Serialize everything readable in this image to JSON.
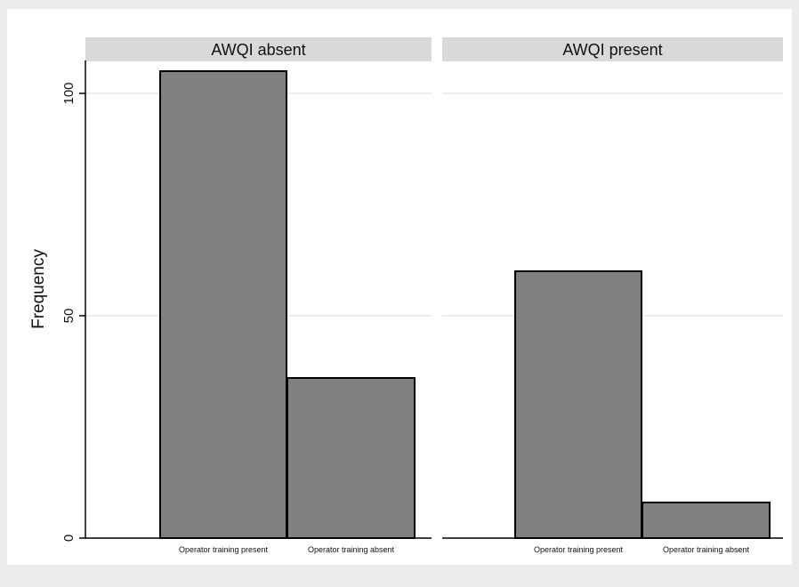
{
  "chart_data": {
    "type": "bar",
    "ylabel": "Frequency",
    "ylim": [
      0,
      107
    ],
    "yticks": [
      0,
      50,
      100
    ],
    "grid": true,
    "legend": "none",
    "colors": {
      "bar": "#808080",
      "bar_edge": "#000000",
      "panel_bg": "#ffffff",
      "outer_bg": "#ececec",
      "strip": "#d9d9d9",
      "grid": "#e2e2e2"
    },
    "panels": [
      {
        "title": "AWQI absent",
        "categories": [
          "Operator training present",
          "Operator training absent"
        ],
        "values": [
          105,
          36
        ]
      },
      {
        "title": "AWQI present",
        "categories": [
          "Operator training present",
          "Operator training absent"
        ],
        "values": [
          60,
          8
        ]
      }
    ]
  }
}
